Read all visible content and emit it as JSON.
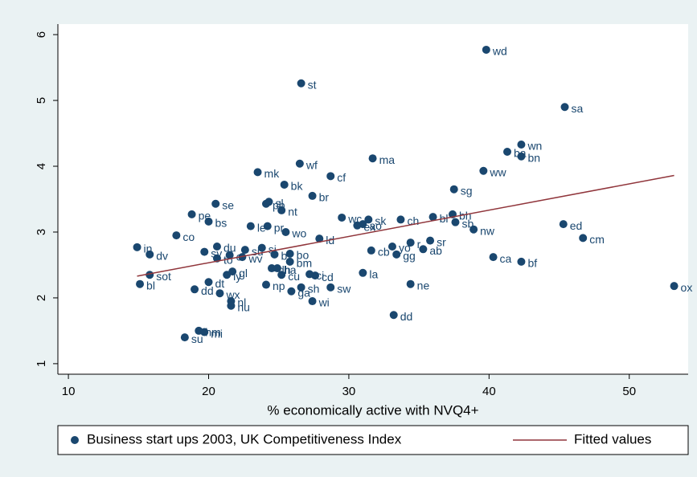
{
  "chart_data": {
    "type": "scatter",
    "xlabel": "% economically active with NVQ4+",
    "xlim": [
      9.25,
      54.2
    ],
    "ylim": [
      0.84,
      6.16
    ],
    "xticks": [
      10,
      20,
      30,
      40,
      50
    ],
    "yticks": [
      1,
      2,
      3,
      4,
      5,
      6
    ],
    "series": [
      {
        "name": "Business start ups 2003, UK Competitiveness Index",
        "color": "#1a476f",
        "type": "scatter",
        "x": [
          39.8,
          26.6,
          45.4,
          42.3,
          41.3,
          42.3,
          31.7,
          39.6,
          23.5,
          26.5,
          28.7,
          25.4,
          37.5,
          27.4,
          24.3,
          24.1,
          20.5,
          25.2,
          18.8,
          37.4,
          29.5,
          36.0,
          31.4,
          33.7,
          20.0,
          37.6,
          45.3,
          23.0,
          24.2,
          30.6,
          31.0,
          38.9,
          25.5,
          17.7,
          46.7,
          27.9,
          35.8,
          34.4,
          20.6,
          33.1,
          14.9,
          35.3,
          23.8,
          31.6,
          22.6,
          15.8,
          33.4,
          19.7,
          40.3,
          42.3,
          25.8,
          24.7,
          22.4,
          21.5,
          20.6,
          25.8,
          31.0,
          34.4,
          24.5,
          24.9,
          27.6,
          27.2,
          21.7,
          21.3,
          15.8,
          25.2,
          15.1,
          24.1,
          26.6,
          28.7,
          20.0,
          19.0,
          25.9,
          20.8,
          27.4,
          21.6,
          21.6,
          33.2,
          53.2,
          19.3,
          19.7,
          18.3
        ],
        "values": [
          5.77,
          5.26,
          4.9,
          4.33,
          4.22,
          4.15,
          4.12,
          3.93,
          3.91,
          4.04,
          3.85,
          3.72,
          3.65,
          3.55,
          3.46,
          3.43,
          3.43,
          3.33,
          3.27,
          3.27,
          3.22,
          3.23,
          3.19,
          3.19,
          3.16,
          3.15,
          3.12,
          3.09,
          3.09,
          3.1,
          3.12,
          3.04,
          3.0,
          2.95,
          2.91,
          2.9,
          2.87,
          2.84,
          2.78,
          2.78,
          2.77,
          2.74,
          2.76,
          2.72,
          2.73,
          2.66,
          2.66,
          2.7,
          2.62,
          2.55,
          2.67,
          2.66,
          2.62,
          2.65,
          2.6,
          2.55,
          2.38,
          2.21,
          2.45,
          2.45,
          2.34,
          2.36,
          2.4,
          2.35,
          2.35,
          2.35,
          2.21,
          2.2,
          2.16,
          2.16,
          2.24,
          2.13,
          2.1,
          2.07,
          1.95,
          1.95,
          1.88,
          1.74,
          2.18,
          1.5,
          1.48,
          1.4
        ],
        "labels": [
          "wd",
          "st",
          "sa",
          "wn",
          "ba",
          "bn",
          "ma",
          "ww",
          "mk",
          "wf",
          "cf",
          "bk",
          "sg",
          "br",
          "sl",
          "pb",
          "se",
          "nt",
          "pe",
          "bh",
          "wc",
          "bl",
          "sk",
          "ch",
          "bs",
          "sb",
          "ed",
          "le",
          "pr",
          "ex",
          "ao",
          "nw",
          "wo",
          "co",
          "cm",
          "ld",
          "sr",
          "r",
          "du",
          "yo",
          "in",
          "ab",
          "si",
          "cb",
          "su",
          "dv",
          "gg",
          "sv",
          "ca",
          "bf",
          "bo",
          "b",
          "wv",
          "cl",
          "to",
          "bm",
          "la",
          "ne",
          "dh",
          "ha",
          "cd",
          "ci",
          "gl",
          "ly",
          "sot",
          "cu",
          "bl",
          "np",
          "sh",
          "sw",
          "dt",
          "dd",
          "ga",
          "wx",
          "wi",
          "nl",
          "nu",
          "dd",
          "ox",
          "hm",
          "mi",
          "su"
        ]
      },
      {
        "name": "Fitted values",
        "color": "#90353b",
        "type": "line",
        "x": [
          14.9,
          53.2
        ],
        "values": [
          2.33,
          3.86
        ]
      }
    ]
  }
}
